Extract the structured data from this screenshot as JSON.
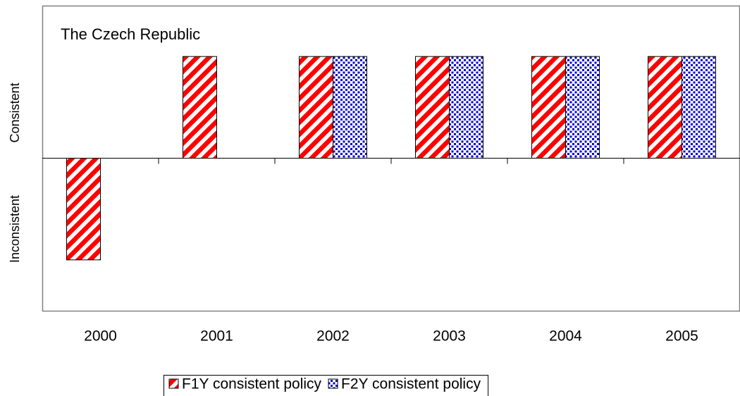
{
  "chart_data": {
    "type": "bar",
    "title": "The Czech Republic",
    "categories": [
      "2000",
      "2001",
      "2002",
      "2003",
      "2004",
      "2005"
    ],
    "series": [
      {
        "name": "F1Y consistent policy",
        "color": "#ff0000",
        "pattern": "stripes",
        "values": [
          -1,
          1,
          1,
          1,
          1,
          1
        ]
      },
      {
        "name": "F2Y consistent policy",
        "color": "#0000cc",
        "pattern": "dots",
        "values": [
          null,
          null,
          1,
          1,
          1,
          1
        ]
      }
    ],
    "y_axis_labels": {
      "positive": "Consistent",
      "negative": "Inconsistent"
    },
    "ylim": [
      -1.5,
      1.5
    ],
    "legend": "bottom"
  }
}
